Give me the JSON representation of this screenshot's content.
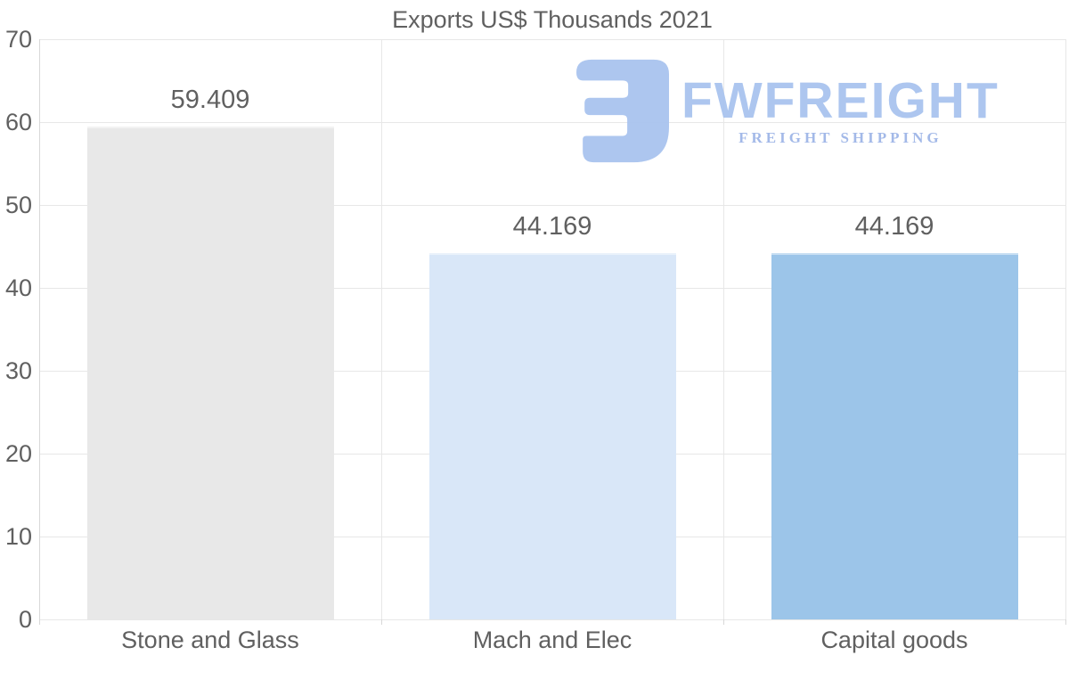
{
  "title": "Exports US$ Thousands 2021",
  "watermark": {
    "brand": "FWFREIGHT",
    "tagline": "FREIGHT SHIPPING",
    "brand_color": "#a9c4ef",
    "tagline_color": "#9fb6e7",
    "logo_icon": "freight-logo-mark"
  },
  "chart_data": {
    "type": "bar",
    "title": "Exports US$ Thousands 2021",
    "categories": [
      "Stone and Glass",
      "Mach and Elec",
      "Capital goods"
    ],
    "values": [
      59.409,
      44.169,
      44.169
    ],
    "value_labels": [
      "59.409",
      "44.169",
      "44.169"
    ],
    "bar_colors": [
      "#e8e8e8",
      "#d9e7f8",
      "#9cc5e9"
    ],
    "xlabel": "",
    "ylabel": "",
    "ylim": [
      0,
      70
    ],
    "yticks": [
      0,
      10,
      20,
      30,
      40,
      50,
      60,
      70
    ],
    "grid": true,
    "legend": false,
    "text_color": "#606060",
    "grid_color": "#e7e7e7",
    "axis_color": "#d8d8d8"
  }
}
